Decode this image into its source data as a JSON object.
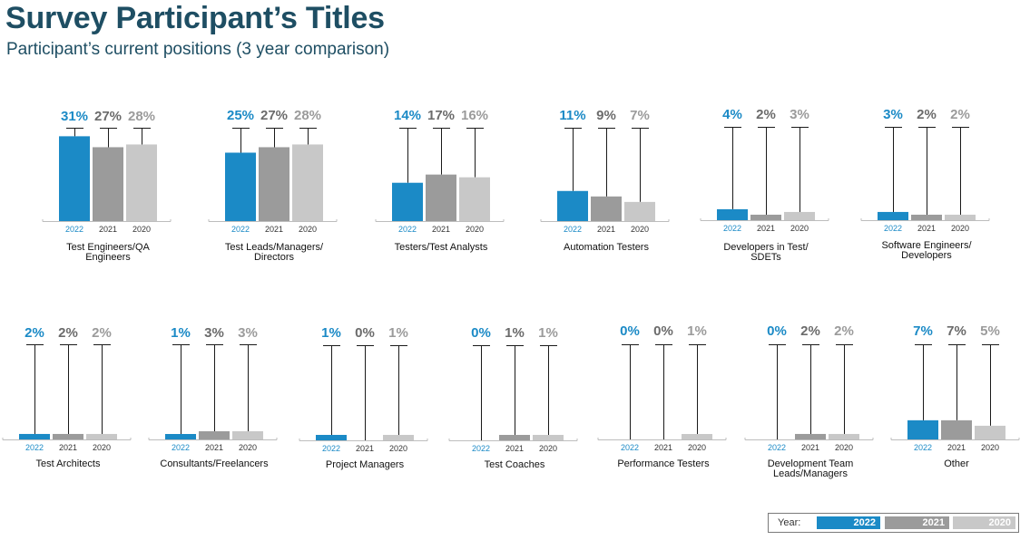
{
  "header": {
    "title": "Survey Participant’s Titles",
    "subtitle": "Participant’s current positions (3 year comparison)"
  },
  "legend": {
    "label": "Year:",
    "years": [
      "2022",
      "2021",
      "2020"
    ]
  },
  "colors": {
    "2022": "#1b8ac6",
    "2021": "#9b9b9b",
    "2020": "#c8c8c8",
    "label_2022": "#1b8ac6",
    "label_2021": "#6b6b6b",
    "label_2020": "#9b9b9b"
  },
  "chart_data": [
    {
      "type": "bar",
      "title": "Test Engineers/QA Engineers",
      "categories": [
        "2022",
        "2021",
        "2020"
      ],
      "labels": [
        "31%",
        "27%",
        "28%"
      ],
      "values": [
        31,
        27,
        28
      ]
    },
    {
      "type": "bar",
      "title": "Test Leads/Managers/ Directors",
      "categories": [
        "2022",
        "2021",
        "2020"
      ],
      "labels": [
        "25%",
        "27%",
        "28%"
      ],
      "values": [
        25,
        27,
        28
      ]
    },
    {
      "type": "bar",
      "title": "Testers/Test Analysts",
      "categories": [
        "2022",
        "2021",
        "2020"
      ],
      "labels": [
        "14%",
        "17%",
        "16%"
      ],
      "values": [
        14,
        17,
        16
      ]
    },
    {
      "type": "bar",
      "title": "Automation Testers",
      "categories": [
        "2022",
        "2021",
        "2020"
      ],
      "labels": [
        "11%",
        "9%",
        "7%"
      ],
      "values": [
        11,
        9,
        7
      ]
    },
    {
      "type": "bar",
      "title": "Developers in Test/ SDETs",
      "categories": [
        "2022",
        "2021",
        "2020"
      ],
      "labels": [
        "4%",
        "2%",
        "3%"
      ],
      "values": [
        4,
        2,
        3
      ]
    },
    {
      "type": "bar",
      "title": "Software Engineers/ Developers",
      "categories": [
        "2022",
        "2021",
        "2020"
      ],
      "labels": [
        "3%",
        "2%",
        "2%"
      ],
      "values": [
        3,
        2,
        2
      ]
    },
    {
      "type": "bar",
      "title": "Test Architects",
      "categories": [
        "2022",
        "2021",
        "2020"
      ],
      "labels": [
        "2%",
        "2%",
        "2%"
      ],
      "values": [
        2,
        2,
        2
      ]
    },
    {
      "type": "bar",
      "title": "Consultants/Freelancers",
      "categories": [
        "2022",
        "2021",
        "2020"
      ],
      "labels": [
        "1%",
        "3%",
        "3%"
      ],
      "values": [
        1,
        3,
        3
      ]
    },
    {
      "type": "bar",
      "title": "Project Managers",
      "categories": [
        "2022",
        "2021",
        "2020"
      ],
      "labels": [
        "1%",
        "0%",
        "1%"
      ],
      "values": [
        1,
        0,
        1
      ]
    },
    {
      "type": "bar",
      "title": "Test Coaches",
      "categories": [
        "2022",
        "2021",
        "2020"
      ],
      "labels": [
        "0%",
        "1%",
        "1%"
      ],
      "values": [
        0,
        1,
        1
      ]
    },
    {
      "type": "bar",
      "title": "Performance Testers",
      "categories": [
        "2022",
        "2021",
        "2020"
      ],
      "labels": [
        "0%",
        "0%",
        "1%"
      ],
      "values": [
        0,
        0,
        1
      ]
    },
    {
      "type": "bar",
      "title": "Development Team Leads/Managers",
      "categories": [
        "2022",
        "2021",
        "2020"
      ],
      "labels": [
        "0%",
        "2%",
        "2%"
      ],
      "values": [
        0,
        2,
        2
      ]
    },
    {
      "type": "bar",
      "title": "Other",
      "categories": [
        "2022",
        "2021",
        "2020"
      ],
      "labels": [
        "7%",
        "7%",
        "5%"
      ],
      "values": [
        7,
        7,
        5
      ]
    }
  ]
}
